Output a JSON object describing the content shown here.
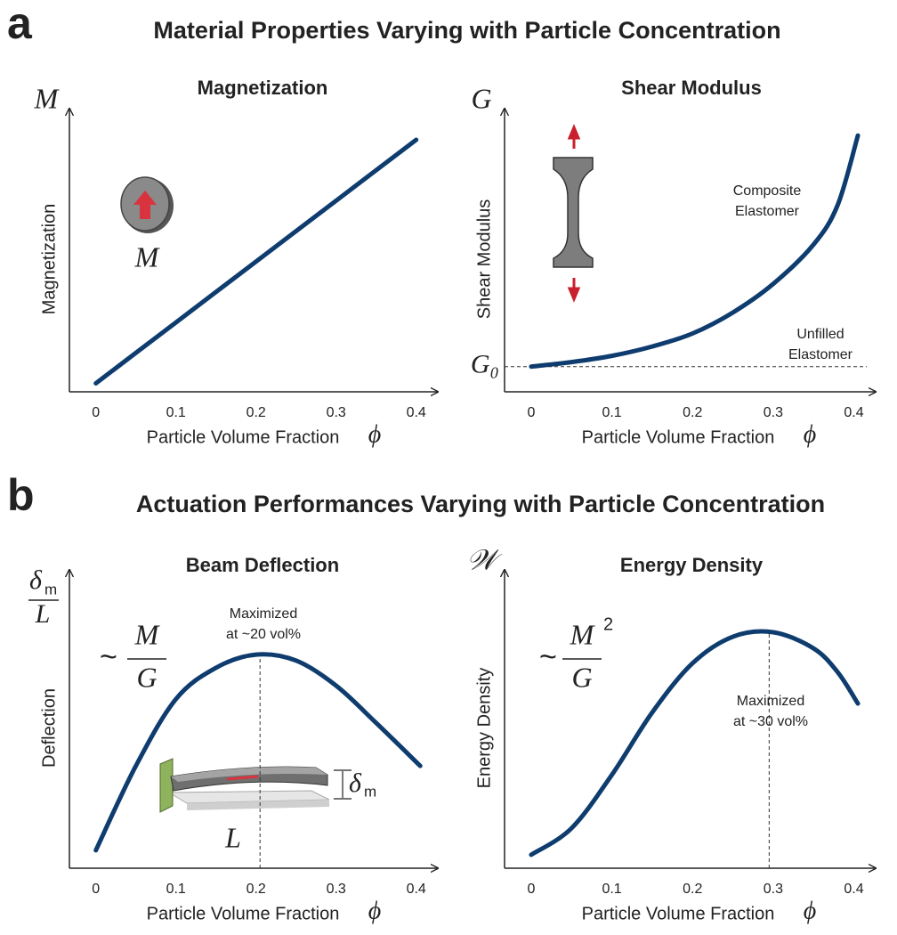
{
  "figure": {
    "panels": [
      {
        "letter": "a",
        "title": "Material Properties Varying with Particle Concentration"
      },
      {
        "letter": "b",
        "title": "Actuation Performances Varying with Particle Concentration"
      }
    ]
  },
  "chart_data": [
    {
      "type": "line",
      "title": "Magnetization",
      "x_label": "Particle Volume Fraction",
      "x_symbol": "ϕ",
      "y_label": "Magnetization",
      "y_symbol": "M",
      "color": "#0e3c6e",
      "x": [
        0,
        0.1,
        0.2,
        0.3,
        0.4
      ],
      "values": [
        0.03,
        0.245,
        0.46,
        0.675,
        0.89
      ],
      "xlim": [
        -0.033,
        0.427
      ],
      "xticks": [
        0,
        0.1,
        0.2,
        0.3,
        0.4
      ],
      "ylim": [
        0,
        1
      ],
      "annotations": [
        "M"
      ]
    },
    {
      "type": "line",
      "title": "Shear Modulus",
      "x_label": "Particle Volume Fraction",
      "x_symbol": "ϕ",
      "y_label": "Shear Modulus",
      "y_symbol": "G",
      "color": "#0e3c6e",
      "x": [
        0,
        0.05,
        0.1,
        0.15,
        0.2,
        0.25,
        0.3,
        0.35,
        0.38,
        0.405
      ],
      "values": [
        0.089,
        0.105,
        0.127,
        0.16,
        0.206,
        0.28,
        0.381,
        0.52,
        0.66,
        0.905
      ],
      "xlim": [
        -0.033,
        0.427
      ],
      "xticks": [
        0,
        0.1,
        0.2,
        0.3,
        0.4
      ],
      "ylim": [
        0,
        1
      ],
      "yticks": [
        {
          "value": 0.089,
          "label": "G₀"
        }
      ],
      "annotations": [
        "Composite",
        "Elastomer",
        "Unfilled",
        "Elastomer"
      ]
    },
    {
      "type": "line",
      "title": "Beam Deflection",
      "x_label": "Particle Volume Fraction",
      "x_symbol": "ϕ",
      "y_label": "Deflection",
      "y_symbol": [
        "δ",
        "m",
        "L"
      ],
      "color": "#0e3c6e",
      "x": [
        0,
        0.05,
        0.1,
        0.15,
        0.2,
        0.25,
        0.3,
        0.35,
        0.405
      ],
      "values": [
        0.06,
        0.343,
        0.567,
        0.672,
        0.716,
        0.696,
        0.612,
        0.487,
        0.343
      ],
      "xlim": [
        -0.033,
        0.427
      ],
      "xticks": [
        0,
        0.1,
        0.2,
        0.3,
        0.4
      ],
      "ylim": [
        0,
        1
      ],
      "vline": 0.205,
      "formula": [
        "~",
        "M",
        "G"
      ],
      "annotations": [
        "Maximized",
        "at ~20 vol%",
        "L",
        "δ",
        "m"
      ]
    },
    {
      "type": "line",
      "title": "Energy Density",
      "x_label": "Particle Volume Fraction",
      "x_symbol": "ϕ",
      "y_label": "Energy Density",
      "y_symbol": "𝒲",
      "color": "#0e3c6e",
      "x": [
        0,
        0.05,
        0.1,
        0.15,
        0.2,
        0.25,
        0.3,
        0.35,
        0.38,
        0.405
      ],
      "values": [
        0.045,
        0.134,
        0.313,
        0.522,
        0.687,
        0.776,
        0.791,
        0.737,
        0.657,
        0.552
      ],
      "xlim": [
        -0.033,
        0.427
      ],
      "xticks": [
        0,
        0.1,
        0.2,
        0.3,
        0.4
      ],
      "ylim": [
        0,
        1
      ],
      "vline": 0.295,
      "formula": [
        "~",
        "M",
        "G",
        "2"
      ],
      "annotations": [
        "Maximized",
        "at ~30 vol%"
      ]
    }
  ]
}
